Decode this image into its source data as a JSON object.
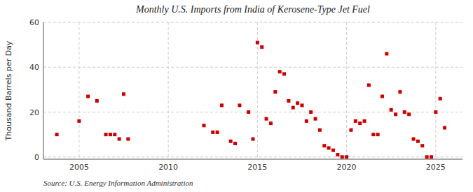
{
  "chart_data": {
    "type": "scatter",
    "title": "Monthly U.S. Imports from India of Kerosene-Type Jet Fuel",
    "y_label": "Thousand Barrels per Day",
    "source": "Source: U.S. Energy Information Administration",
    "x": [
      2003.75,
      2005.0,
      2005.5,
      2006.0,
      2006.5,
      2006.75,
      2007.0,
      2007.25,
      2007.5,
      2007.75,
      2012.0,
      2012.5,
      2012.75,
      2013.0,
      2013.5,
      2013.75,
      2014.0,
      2014.5,
      2014.75,
      2015.0,
      2015.25,
      2015.5,
      2015.75,
      2016.0,
      2016.25,
      2016.5,
      2016.75,
      2017.0,
      2017.25,
      2017.5,
      2017.75,
      2018.0,
      2018.25,
      2018.5,
      2018.75,
      2019.0,
      2019.25,
      2019.5,
      2019.75,
      2020.0,
      2020.25,
      2020.5,
      2020.75,
      2021.0,
      2021.25,
      2021.5,
      2021.75,
      2022.0,
      2022.25,
      2022.5,
      2022.75,
      2023.0,
      2023.25,
      2023.5,
      2023.75,
      2024.0,
      2024.25,
      2024.5,
      2024.75,
      2025.0,
      2025.25,
      2025.5
    ],
    "values": [
      10,
      16,
      27,
      25,
      10,
      10,
      10,
      8,
      28,
      8,
      14,
      11,
      11,
      23,
      7,
      6,
      23,
      20,
      8,
      51,
      49,
      17,
      15,
      29,
      38,
      37,
      25,
      22,
      24,
      23,
      16,
      20,
      17,
      12,
      5,
      4,
      3,
      1,
      0,
      0,
      12,
      16,
      15,
      16,
      32,
      10,
      10,
      27,
      46,
      21,
      19,
      29,
      20,
      19,
      8,
      7,
      5,
      0,
      0,
      20,
      26,
      13
    ],
    "color": "#cc0000",
    "marker": "square",
    "xlim": [
      2003.0,
      2026.5
    ],
    "ylim": [
      -1,
      60
    ],
    "xticks": [
      2005,
      2010,
      2015,
      2020,
      2025
    ],
    "yticks": [
      0,
      20,
      40,
      60
    ],
    "grid": true
  }
}
